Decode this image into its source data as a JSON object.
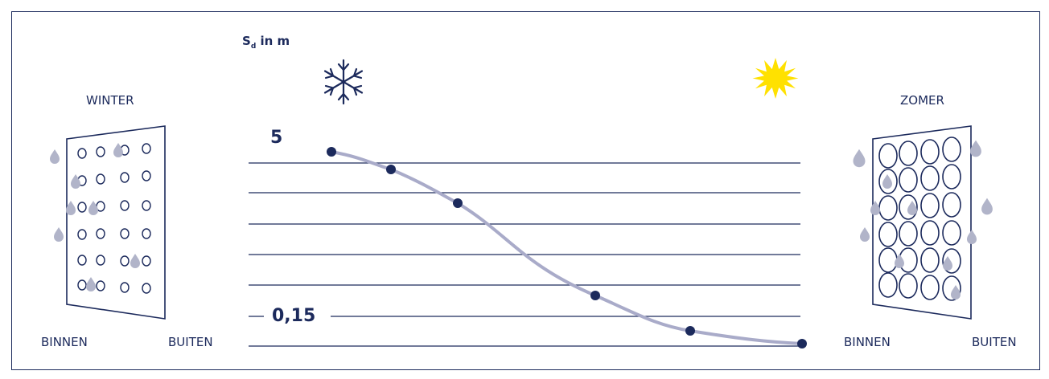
{
  "colors": {
    "navy": "#1c2a5c",
    "curve": "#a9abc9",
    "drop": "#b1b4c9",
    "sun": "#ffe100"
  },
  "icons": [
    "snowflake-icon",
    "sun-icon",
    "water-drop-icon"
  ],
  "left_panel": {
    "season": "WINTER",
    "inside": "BINNEN",
    "outside": "BUITEN",
    "pore_size": "small"
  },
  "right_panel": {
    "season": "ZOMER",
    "inside": "BINNEN",
    "outside": "BUITEN",
    "pore_size": "large"
  },
  "chart_data": {
    "type": "line",
    "ylabel_main": "S",
    "ylabel_sub": "d",
    "ylabel_rest": " in m",
    "labels": {
      "top": "5",
      "bottom": "0,15"
    },
    "grid_lines": 7,
    "series": [
      {
        "values": [
          5,
          4.6,
          3.7,
          1.3,
          0.5,
          0.15
        ]
      }
    ]
  }
}
